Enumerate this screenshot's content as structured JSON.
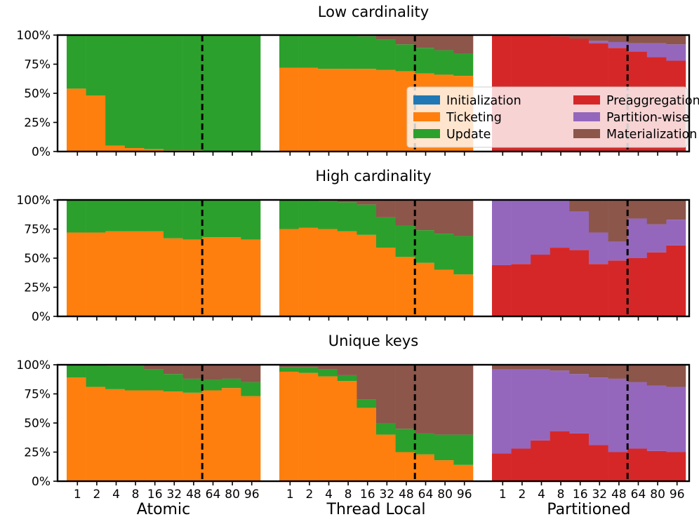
{
  "colors": {
    "Initialization": "#1f77b4",
    "Ticketing": "#ff7f0e",
    "Update": "#2ca02c",
    "Preaggregation": "#d62728",
    "Partition-wise": "#9467bd",
    "Materialization": "#8c564b"
  },
  "chart_data": {
    "type": "stacked_bar",
    "ytick_labels": [
      "0%",
      "25%",
      "50%",
      "75%",
      "100%"
    ],
    "ylim": [
      0,
      100
    ],
    "x_tick_labels": [
      "1",
      "2",
      "4",
      "8",
      "16",
      "32",
      "48",
      "64",
      "80",
      "96"
    ],
    "groups": [
      "Atomic",
      "Thread Local",
      "Partitioned"
    ],
    "legend": {
      "placement": "panel-1-lower-right",
      "entries": [
        "Initialization",
        "Ticketing",
        "Update",
        "Preaggregation",
        "Partition-wise",
        "Materialization"
      ]
    },
    "panels": [
      {
        "title": "Low cardinality",
        "groups": {
          "Atomic": {
            "Initialization": [
              0,
              0,
              0,
              0,
              0,
              0,
              0,
              0,
              0,
              0
            ],
            "Ticketing": [
              54,
              48,
              5,
              3,
              2,
              1,
              1,
              0,
              0,
              0
            ],
            "Update": [
              46,
              52,
              95,
              97,
              98,
              99,
              99,
              100,
              100,
              100
            ],
            "Materialization": [
              0,
              0,
              0,
              0,
              0,
              0,
              0,
              0,
              0,
              0
            ]
          },
          "Thread Local": {
            "Initialization": [
              0,
              0,
              0,
              0,
              0,
              0,
              0,
              0,
              0,
              0
            ],
            "Ticketing": [
              72,
              72,
              71,
              71,
              71,
              70,
              69,
              67,
              66,
              65
            ],
            "Update": [
              28,
              28,
              29,
              29,
              28,
              26,
              23,
              22,
              21,
              19
            ],
            "Materialization": [
              0,
              0,
              0,
              0,
              1,
              4,
              8,
              11,
              13,
              16
            ]
          },
          "Partitioned": {
            "Initialization": [
              0,
              0,
              0,
              0,
              0,
              0,
              0,
              0,
              0,
              0
            ],
            "Preaggregation": [
              100,
              100,
              100,
              99,
              97,
              93,
              89,
              86,
              81,
              78
            ],
            "Partition-wise": [
              0,
              0,
              0,
              0,
              0,
              2,
              5,
              7,
              12,
              14
            ],
            "Materialization": [
              0,
              0,
              0,
              1,
              3,
              5,
              6,
              7,
              7,
              8
            ]
          }
        }
      },
      {
        "title": "High cardinality",
        "groups": {
          "Atomic": {
            "Initialization": [
              0,
              0,
              0,
              0,
              0,
              0,
              0,
              0,
              0,
              0
            ],
            "Ticketing": [
              72,
              72,
              73,
              73,
              73,
              67,
              66,
              68,
              68,
              66
            ],
            "Update": [
              28,
              28,
              27,
              27,
              27,
              33,
              34,
              32,
              32,
              34
            ],
            "Materialization": [
              0,
              0,
              0,
              0,
              0,
              0,
              0,
              0,
              0,
              0
            ]
          },
          "Thread Local": {
            "Initialization": [
              0,
              0,
              0,
              0,
              0,
              0,
              0,
              0,
              0,
              0
            ],
            "Ticketing": [
              75,
              76,
              75,
              73,
              70,
              59,
              51,
              46,
              40,
              36
            ],
            "Update": [
              25,
              24,
              24,
              25,
              26,
              26,
              27,
              28,
              31,
              33
            ],
            "Materialization": [
              0,
              0,
              1,
              2,
              4,
              15,
              22,
              26,
              29,
              31
            ]
          },
          "Partitioned": {
            "Initialization": [
              0,
              0,
              0,
              0,
              0,
              0,
              0,
              0,
              0,
              0
            ],
            "Preaggregation": [
              44,
              45,
              53,
              59,
              57,
              45,
              48,
              50,
              55,
              61
            ],
            "Partition-wise": [
              56,
              55,
              47,
              41,
              33,
              27,
              16,
              34,
              24,
              22
            ],
            "Materialization": [
              0,
              0,
              0,
              0,
              10,
              28,
              36,
              16,
              21,
              17
            ]
          }
        }
      },
      {
        "title": "Unique keys",
        "groups": {
          "Atomic": {
            "Initialization": [
              0,
              0,
              0,
              0,
              0,
              0,
              0,
              0,
              0,
              0
            ],
            "Ticketing": [
              89,
              81,
              79,
              78,
              78,
              77,
              76,
              78,
              80,
              73
            ],
            "Update": [
              11,
              19,
              20,
              21,
              18,
              15,
              12,
              9,
              8,
              12
            ],
            "Materialization": [
              0,
              0,
              1,
              1,
              4,
              8,
              12,
              13,
              12,
              15
            ]
          },
          "Thread Local": {
            "Initialization": [
              0,
              0,
              0,
              0,
              0,
              0,
              0,
              0,
              0,
              0
            ],
            "Ticketing": [
              94,
              93,
              90,
              86,
              63,
              40,
              25,
              23,
              18,
              14
            ],
            "Update": [
              4,
              5,
              6,
              5,
              7,
              10,
              20,
              18,
              22,
              26
            ],
            "Materialization": [
              2,
              2,
              4,
              9,
              30,
              50,
              55,
              59,
              60,
              60
            ]
          },
          "Partitioned": {
            "Initialization": [
              0,
              0,
              0,
              0,
              0,
              0,
              0,
              0,
              0,
              0
            ],
            "Preaggregation": [
              24,
              28,
              35,
              43,
              41,
              31,
              25,
              28,
              26,
              25
            ],
            "Partition-wise": [
              72,
              68,
              61,
              52,
              51,
              58,
              63,
              57,
              56,
              56
            ],
            "Materialization": [
              4,
              4,
              4,
              5,
              8,
              11,
              12,
              15,
              18,
              19
            ]
          }
        }
      }
    ]
  }
}
